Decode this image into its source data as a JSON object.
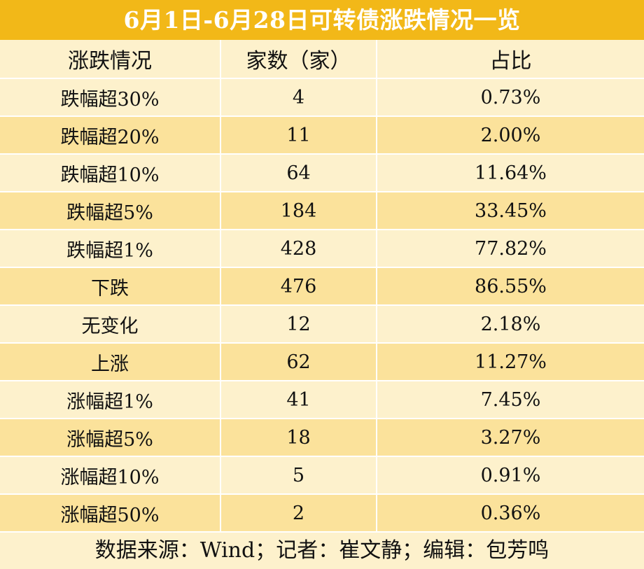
{
  "title": "6月1日-6月28日可转债涨跌情况一览",
  "columns": [
    "涨跌情况",
    "家数（家）",
    "占比"
  ],
  "rows": [
    {
      "label": "跌幅超30%",
      "count": "4",
      "ratio": "0.73%"
    },
    {
      "label": "跌幅超20%",
      "count": "11",
      "ratio": "2.00%"
    },
    {
      "label": "跌幅超10%",
      "count": "64",
      "ratio": "11.64%"
    },
    {
      "label": "跌幅超5%",
      "count": "184",
      "ratio": "33.45%"
    },
    {
      "label": "跌幅超1%",
      "count": "428",
      "ratio": "77.82%"
    },
    {
      "label": "下跌",
      "count": "476",
      "ratio": "86.55%"
    },
    {
      "label": "无变化",
      "count": "12",
      "ratio": "2.18%"
    },
    {
      "label": "上涨",
      "count": "62",
      "ratio": "11.27%"
    },
    {
      "label": "涨幅超1%",
      "count": "41",
      "ratio": "7.45%"
    },
    {
      "label": "涨幅超5%",
      "count": "18",
      "ratio": "3.27%"
    },
    {
      "label": "涨幅超10%",
      "count": "5",
      "ratio": "0.91%"
    },
    {
      "label": "涨幅超50%",
      "count": "2",
      "ratio": "0.36%"
    }
  ],
  "footer": "数据来源：Wind；记者：崔文静；编辑：包芳鸣",
  "colors": {
    "title_bg": "#f2b818",
    "row_light": "#fdf1cc",
    "row_dark": "#fbe29b"
  }
}
